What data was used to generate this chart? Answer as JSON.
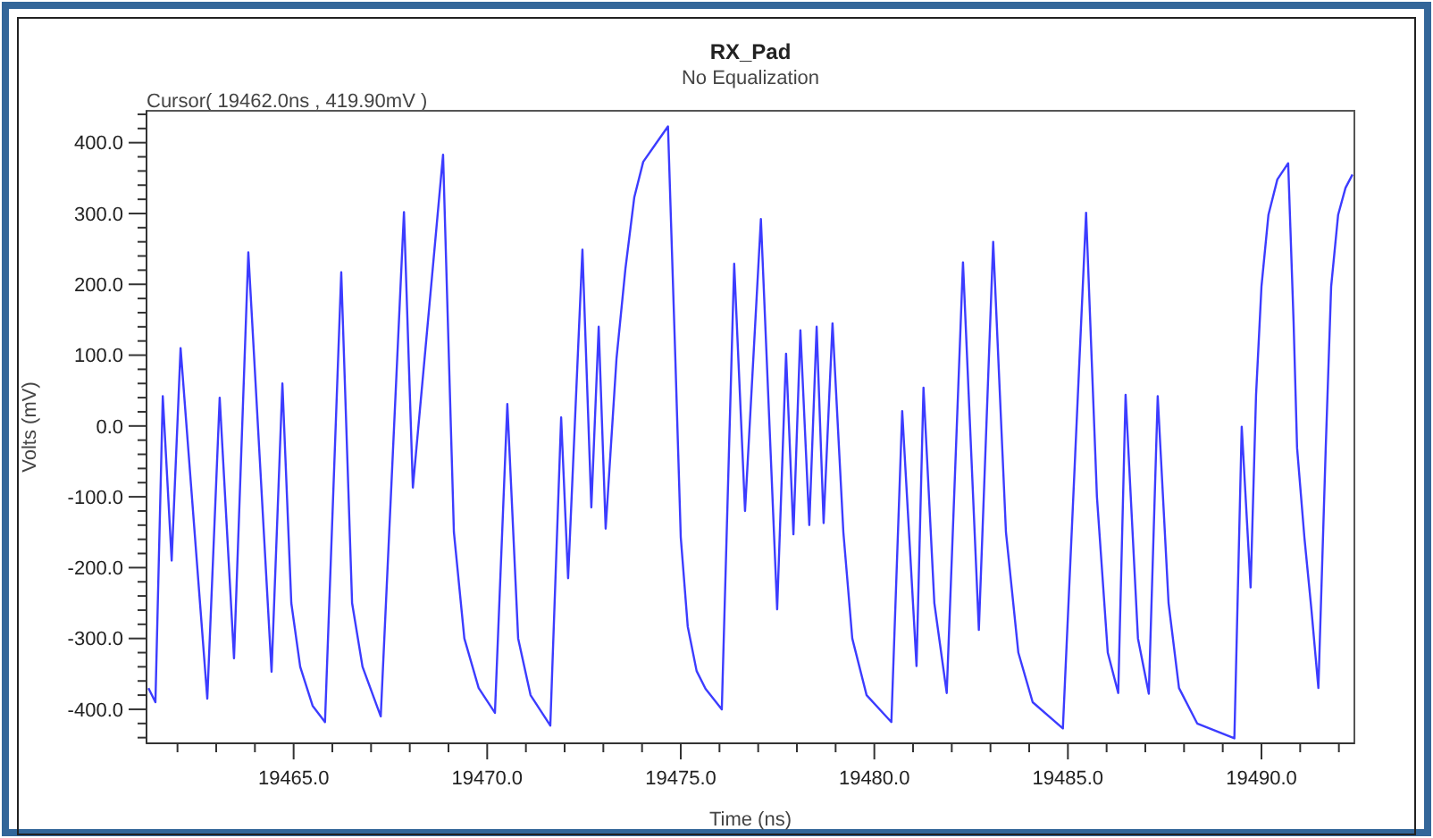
{
  "chart_data": {
    "type": "line",
    "title": "RX_Pad",
    "subtitle": "No Equalization",
    "xlabel": "Time (ns)",
    "ylabel": "Volts (mV)",
    "annotations": [
      "Cursor( 19462.0ns , 419.90mV )"
    ],
    "x": [
      19461.25,
      19461.43,
      19461.62,
      19461.85,
      19462.08,
      19462.77,
      19463.09,
      19463.46,
      19463.83,
      19464.43,
      19464.71,
      19464.94,
      19465.17,
      19465.49,
      19465.81,
      19466.23,
      19466.51,
      19466.78,
      19467.25,
      19467.85,
      19468.08,
      19468.86,
      19469.14,
      19469.41,
      19469.78,
      19470.2,
      19470.52,
      19470.8,
      19471.12,
      19471.63,
      19471.91,
      19472.09,
      19472.46,
      19472.69,
      19472.88,
      19473.06,
      19473.34,
      19473.57,
      19473.8,
      19474.03,
      19474.35,
      19474.67,
      19474.86,
      19475.0,
      19475.18,
      19475.41,
      19475.64,
      19476.06,
      19476.38,
      19476.66,
      19477.07,
      19477.49,
      19477.72,
      19477.91,
      19478.09,
      19478.32,
      19478.51,
      19478.69,
      19478.92,
      19479.2,
      19479.43,
      19479.8,
      19480.44,
      19480.72,
      19481.09,
      19481.27,
      19481.55,
      19481.87,
      19482.29,
      19482.7,
      19483.07,
      19483.4,
      19483.72,
      19484.09,
      19484.87,
      19485.47,
      19485.75,
      19486.03,
      19486.3,
      19486.49,
      19486.81,
      19487.09,
      19487.32,
      19487.6,
      19487.87,
      19488.34,
      19489.3,
      19489.49,
      19489.72,
      19489.86,
      19490.0,
      19490.18,
      19490.41,
      19490.69,
      19490.83,
      19490.92,
      19491.11,
      19491.29,
      19491.47,
      19491.66,
      19491.8,
      19491.98,
      19492.17,
      19492.35
    ],
    "series": [
      {
        "color": "#3c3cff",
        "values": [
          -370,
          -390,
          42,
          -190,
          110,
          -385,
          40,
          -328,
          245,
          -347,
          60,
          -250,
          -340,
          -395,
          -418,
          217,
          -250,
          -340,
          -410,
          302,
          -87,
          383,
          -150,
          -300,
          -370,
          -405,
          31,
          -300,
          -380,
          -423,
          12,
          -215,
          249,
          -115,
          140,
          -145,
          95,
          222,
          323,
          373,
          398,
          423,
          95,
          -157,
          -283,
          -346,
          -371,
          -400,
          229,
          -120,
          292,
          -259,
          102,
          -153,
          135,
          -140,
          140,
          -137,
          145,
          -150,
          -300,
          -380,
          -418,
          21,
          -339,
          54,
          -250,
          -377,
          231,
          -288,
          260,
          -150,
          -320,
          -390,
          -427,
          301,
          -100,
          -320,
          -377,
          44,
          -300,
          -378,
          42,
          -250,
          -370,
          -420,
          -441,
          -1,
          -228,
          44,
          197,
          298,
          348,
          371,
          146,
          -31,
          -158,
          -259,
          -370,
          -31,
          197,
          298,
          336,
          355
        ]
      }
    ],
    "xlim": [
      19461.2,
      19492.4
    ],
    "ylim": [
      -448,
      445
    ],
    "marker": "none",
    "line_style": "solid",
    "grid": false,
    "xticks": [
      {
        "value": 19462,
        "label": null
      },
      {
        "value": 19463,
        "label": null
      },
      {
        "value": 19464,
        "label": null
      },
      {
        "value": 19465,
        "label": "19465.0"
      },
      {
        "value": 19466,
        "label": null
      },
      {
        "value": 19467,
        "label": null
      },
      {
        "value": 19468,
        "label": null
      },
      {
        "value": 19469,
        "label": null
      },
      {
        "value": 19470,
        "label": "19470.0"
      },
      {
        "value": 19471,
        "label": null
      },
      {
        "value": 19472,
        "label": null
      },
      {
        "value": 19473,
        "label": null
      },
      {
        "value": 19474,
        "label": null
      },
      {
        "value": 19475,
        "label": "19475.0"
      },
      {
        "value": 19476,
        "label": null
      },
      {
        "value": 19477,
        "label": null
      },
      {
        "value": 19478,
        "label": null
      },
      {
        "value": 19479,
        "label": null
      },
      {
        "value": 19480,
        "label": "19480.0"
      },
      {
        "value": 19481,
        "label": null
      },
      {
        "value": 19482,
        "label": null
      },
      {
        "value": 19483,
        "label": null
      },
      {
        "value": 19484,
        "label": null
      },
      {
        "value": 19485,
        "label": "19485.0"
      },
      {
        "value": 19486,
        "label": null
      },
      {
        "value": 19487,
        "label": null
      },
      {
        "value": 19488,
        "label": null
      },
      {
        "value": 19489,
        "label": null
      },
      {
        "value": 19490,
        "label": "19490.0"
      },
      {
        "value": 19491,
        "label": null
      },
      {
        "value": 19492,
        "label": null
      }
    ],
    "yticks": [
      {
        "value": -440,
        "label": null
      },
      {
        "value": -420,
        "label": null
      },
      {
        "value": -400,
        "label": "-400.0"
      },
      {
        "value": -380,
        "label": null
      },
      {
        "value": -360,
        "label": null
      },
      {
        "value": -340,
        "label": null
      },
      {
        "value": -320,
        "label": null
      },
      {
        "value": -300,
        "label": "-300.0"
      },
      {
        "value": -280,
        "label": null
      },
      {
        "value": -260,
        "label": null
      },
      {
        "value": -240,
        "label": null
      },
      {
        "value": -220,
        "label": null
      },
      {
        "value": -200,
        "label": "-200.0"
      },
      {
        "value": -180,
        "label": null
      },
      {
        "value": -160,
        "label": null
      },
      {
        "value": -140,
        "label": null
      },
      {
        "value": -120,
        "label": null
      },
      {
        "value": -100,
        "label": "-100.0"
      },
      {
        "value": -80,
        "label": null
      },
      {
        "value": -60,
        "label": null
      },
      {
        "value": -40,
        "label": null
      },
      {
        "value": -20,
        "label": null
      },
      {
        "value": 0,
        "label": "0.0"
      },
      {
        "value": 20,
        "label": null
      },
      {
        "value": 40,
        "label": null
      },
      {
        "value": 60,
        "label": null
      },
      {
        "value": 80,
        "label": null
      },
      {
        "value": 100,
        "label": "100.0"
      },
      {
        "value": 120,
        "label": null
      },
      {
        "value": 140,
        "label": null
      },
      {
        "value": 160,
        "label": null
      },
      {
        "value": 180,
        "label": null
      },
      {
        "value": 200,
        "label": "200.0"
      },
      {
        "value": 220,
        "label": null
      },
      {
        "value": 240,
        "label": null
      },
      {
        "value": 260,
        "label": null
      },
      {
        "value": 280,
        "label": null
      },
      {
        "value": 300,
        "label": "300.0"
      },
      {
        "value": 320,
        "label": null
      },
      {
        "value": 340,
        "label": null
      },
      {
        "value": 360,
        "label": null
      },
      {
        "value": 380,
        "label": null
      },
      {
        "value": 400,
        "label": "400.0"
      },
      {
        "value": 420,
        "label": null
      },
      {
        "value": 440,
        "label": null
      }
    ]
  }
}
